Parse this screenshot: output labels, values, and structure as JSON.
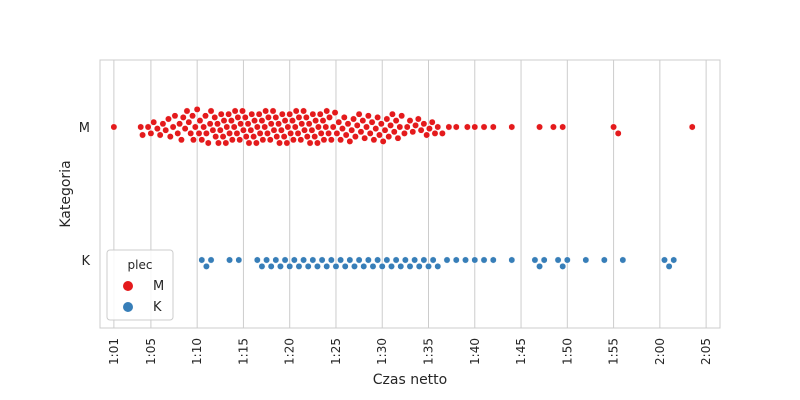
{
  "chart_data": {
    "type": "scatter",
    "subtype": "swarm",
    "title": "",
    "xlabel": "Czas netto",
    "ylabel": "Kategoria",
    "xlim_minutes": [
      59.5,
      126.5
    ],
    "x_ticks": [
      {
        "minutes": 61,
        "label": "1:01"
      },
      {
        "minutes": 65,
        "label": "1:05"
      },
      {
        "minutes": 70,
        "label": "1:10"
      },
      {
        "minutes": 75,
        "label": "1:15"
      },
      {
        "minutes": 80,
        "label": "1:20"
      },
      {
        "minutes": 85,
        "label": "1:25"
      },
      {
        "minutes": 90,
        "label": "1:30"
      },
      {
        "minutes": 95,
        "label": "1:35"
      },
      {
        "minutes": 100,
        "label": "1:40"
      },
      {
        "minutes": 105,
        "label": "1:45"
      },
      {
        "minutes": 110,
        "label": "1:50"
      },
      {
        "minutes": 115,
        "label": "1:55"
      },
      {
        "minutes": 120,
        "label": "2:00"
      },
      {
        "minutes": 125,
        "label": "2:05"
      }
    ],
    "categories": [
      "M",
      "K"
    ],
    "grid": "vertical",
    "legend": {
      "title": "plec",
      "position": "lower-left"
    },
    "series": [
      {
        "name": "M",
        "category": "M",
        "color": "#e41a1c",
        "values_minutes": [
          61.0,
          63.9,
          64.1,
          64.7,
          65.0,
          65.3,
          65.7,
          66.0,
          66.3,
          66.6,
          66.9,
          67.1,
          67.4,
          67.6,
          67.9,
          68.1,
          68.3,
          68.5,
          68.7,
          68.9,
          69.1,
          69.3,
          69.5,
          69.6,
          69.8,
          70.0,
          70.2,
          70.3,
          70.5,
          70.7,
          70.9,
          71.0,
          71.2,
          71.4,
          71.5,
          71.7,
          71.9,
          72.0,
          72.2,
          72.3,
          72.5,
          72.6,
          72.8,
          72.9,
          73.1,
          73.2,
          73.4,
          73.5,
          73.7,
          73.8,
          74.0,
          74.1,
          74.3,
          74.4,
          74.6,
          74.7,
          74.9,
          75.0,
          75.2,
          75.3,
          75.5,
          75.6,
          75.8,
          75.9,
          76.1,
          76.2,
          76.4,
          76.5,
          76.7,
          76.8,
          77.0,
          77.1,
          77.3,
          77.4,
          77.6,
          77.7,
          77.9,
          78.0,
          78.2,
          78.3,
          78.5,
          78.6,
          78.8,
          78.9,
          79.1,
          79.2,
          79.4,
          79.5,
          79.7,
          79.8,
          80.0,
          80.1,
          80.3,
          80.4,
          80.6,
          80.7,
          80.9,
          81.0,
          81.2,
          81.3,
          81.5,
          81.6,
          81.8,
          81.9,
          82.1,
          82.2,
          82.4,
          82.5,
          82.7,
          82.8,
          83.0,
          83.1,
          83.3,
          83.4,
          83.6,
          83.7,
          83.9,
          84.0,
          84.2,
          84.3,
          84.5,
          84.7,
          84.9,
          85.1,
          85.3,
          85.5,
          85.7,
          85.9,
          86.1,
          86.3,
          86.5,
          86.7,
          86.9,
          87.1,
          87.3,
          87.5,
          87.7,
          87.9,
          88.1,
          88.3,
          88.5,
          88.7,
          88.9,
          89.1,
          89.3,
          89.5,
          89.7,
          89.9,
          90.1,
          90.3,
          90.5,
          90.7,
          90.9,
          91.1,
          91.3,
          91.5,
          91.7,
          91.9,
          92.1,
          92.4,
          92.7,
          93.0,
          93.3,
          93.6,
          93.9,
          94.2,
          94.5,
          94.8,
          95.1,
          95.4,
          95.7,
          96.0,
          96.5,
          97.2,
          98.0,
          99.2,
          100.0,
          101.0,
          102.0,
          104.0,
          107.0,
          108.5,
          109.5,
          115.0,
          115.5,
          123.5
        ],
        "note_values": "approximate, read from swarm plot"
      },
      {
        "name": "K",
        "category": "K",
        "color": "#377eb8",
        "values_minutes": [
          70.5,
          71.0,
          71.5,
          73.5,
          74.5,
          76.5,
          77.0,
          77.5,
          78.0,
          78.5,
          79.0,
          79.5,
          80.0,
          80.5,
          81.0,
          81.5,
          82.0,
          82.5,
          83.0,
          83.5,
          84.0,
          84.5,
          85.0,
          85.5,
          86.0,
          86.5,
          87.0,
          87.5,
          88.0,
          88.5,
          89.0,
          89.5,
          90.0,
          90.5,
          91.0,
          91.5,
          92.0,
          92.5,
          93.0,
          93.5,
          94.0,
          94.5,
          95.0,
          95.5,
          96.0,
          97.0,
          98.0,
          99.0,
          100.0,
          101.0,
          102.0,
          104.0,
          106.5,
          107.0,
          107.5,
          109.0,
          109.5,
          110.0,
          112.0,
          114.0,
          116.0,
          120.5,
          121.0,
          121.5
        ],
        "note_values": "approximate, read from swarm plot"
      }
    ]
  }
}
